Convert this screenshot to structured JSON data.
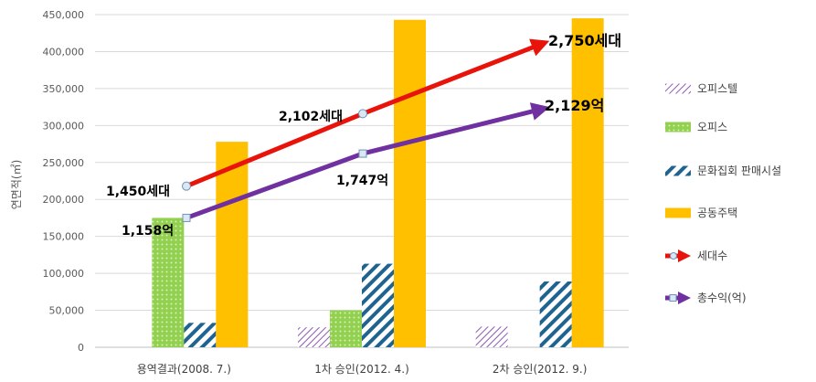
{
  "chart_data": {
    "type": "bar",
    "categories": [
      "용역결과(2008. 7.)",
      "1차 승인(2012. 4.)",
      "2차 승인(2012. 9.)"
    ],
    "ylabel": "연면적(㎡)",
    "ylim": [
      0,
      450000
    ],
    "yticks": [
      "0",
      "50,000",
      "100,000",
      "150,000",
      "200,000",
      "250,000",
      "300,000",
      "350,000",
      "400,000",
      "450,000"
    ],
    "grid": true,
    "legend_position": "right",
    "series": [
      {
        "name": "오피스텔",
        "values": [
          0,
          27000,
          28000
        ],
        "color": "#7030a0",
        "pattern": "diagonal"
      },
      {
        "name": "오피스",
        "values": [
          175000,
          50000,
          0
        ],
        "color": "#92d050",
        "pattern": "dots"
      },
      {
        "name": "문화집회 판매시설",
        "values": [
          33000,
          113000,
          89000
        ],
        "color": "#1f6391",
        "pattern": "wide-diagonal"
      },
      {
        "name": "공동주택",
        "values": [
          278000,
          443000,
          445000
        ],
        "color": "#ffc000",
        "pattern": "solid"
      }
    ],
    "lines": [
      {
        "name": "세대수",
        "color": "#e8140c",
        "values": [
          1450,
          2102,
          2750
        ],
        "labels": [
          "1,450세대",
          "2,102세대",
          "2,750세대"
        ],
        "plot_y": [
          218000,
          316000,
          410000
        ]
      },
      {
        "name": "총수익(억)",
        "color": "#7030a0",
        "values": [
          1158,
          1747,
          2129
        ],
        "labels": [
          "1,158억",
          "1,747억",
          "2,129억"
        ],
        "plot_y": [
          175000,
          262000,
          322000
        ]
      }
    ]
  }
}
